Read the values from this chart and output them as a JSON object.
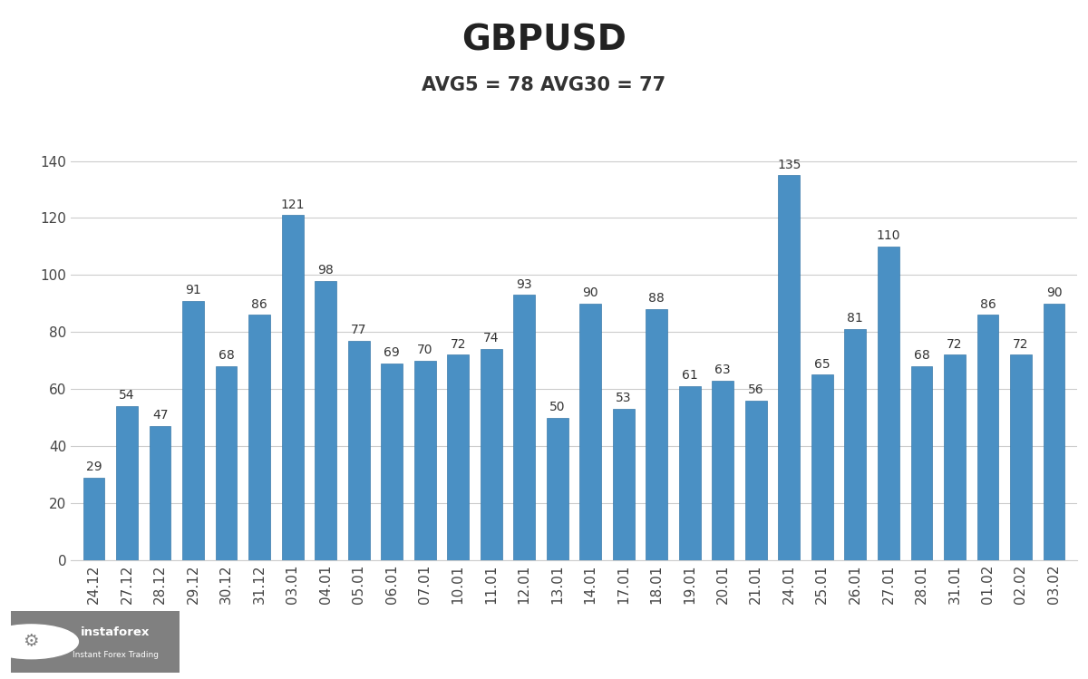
{
  "title": "GBPUSD",
  "subtitle": "AVG5 = 78 AVG30 = 77",
  "categories": [
    "24.12",
    "27.12",
    "28.12",
    "29.12",
    "30.12",
    "31.12",
    "03.01",
    "04.01",
    "05.01",
    "06.01",
    "07.01",
    "10.01",
    "11.01",
    "12.01",
    "13.01",
    "14.01",
    "17.01",
    "18.01",
    "19.01",
    "20.01",
    "21.01",
    "24.01",
    "25.01",
    "26.01",
    "27.01",
    "28.01",
    "31.01",
    "01.02",
    "02.02",
    "03.02"
  ],
  "values": [
    29,
    54,
    47,
    91,
    68,
    86,
    121,
    98,
    77,
    69,
    70,
    72,
    74,
    93,
    50,
    90,
    53,
    88,
    61,
    63,
    56,
    135,
    65,
    81,
    110,
    68,
    72,
    86,
    72,
    90
  ],
  "bar_color": "#4a90c4",
  "bar_edge_color": "#3a7aaa",
  "title_fontsize": 28,
  "subtitle_fontsize": 15,
  "tick_label_fontsize": 11,
  "ylim": [
    0,
    150
  ],
  "yticks": [
    0,
    20,
    40,
    60,
    80,
    100,
    120,
    140
  ],
  "background_color": "#ffffff",
  "grid_color": "#cccccc",
  "value_label_fontsize": 10,
  "bar_width": 0.65,
  "logo_bg": "#808080"
}
